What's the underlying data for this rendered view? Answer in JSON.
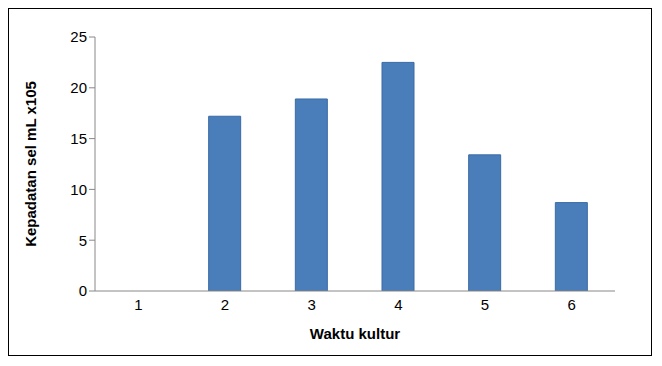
{
  "chart_data": {
    "type": "bar",
    "x_label": "Waktu kultur",
    "y_label": "Kepadatan sel mL x105",
    "categories": [
      "1",
      "2",
      "3",
      "4",
      "5",
      "6"
    ],
    "values": [
      0,
      17.2,
      18.9,
      22.5,
      13.4,
      8.7
    ],
    "color": "#4a7ebb",
    "ylim": [
      0,
      25
    ],
    "yticks": [
      0,
      5,
      10,
      15,
      20,
      25
    ],
    "grid": false
  }
}
